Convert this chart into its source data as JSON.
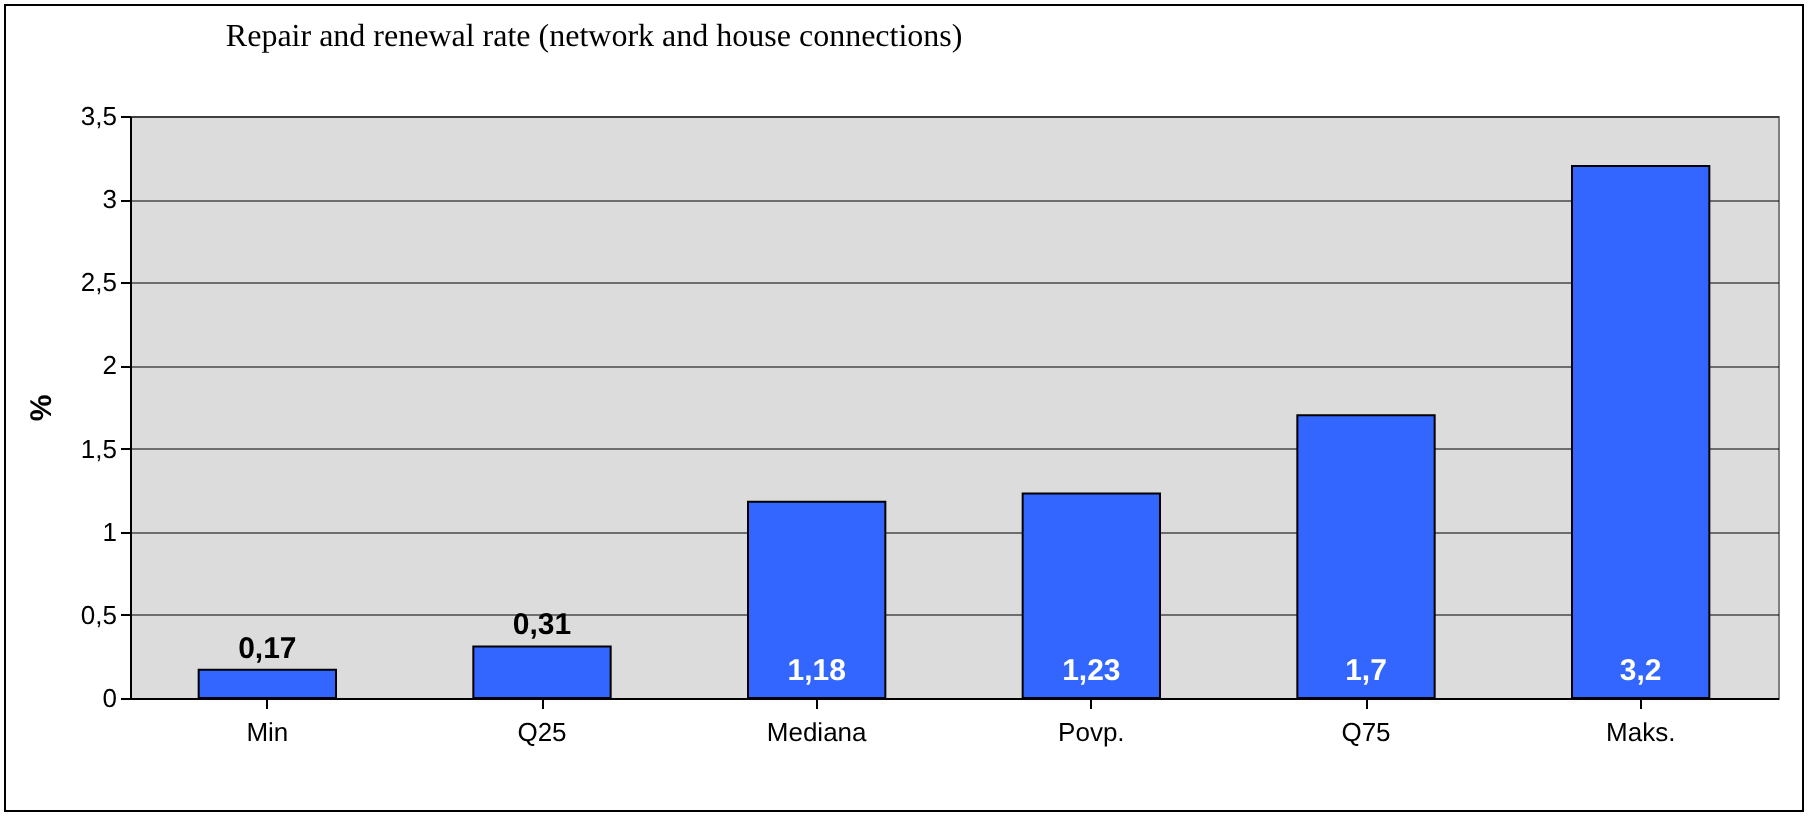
{
  "chart_data": {
    "type": "bar",
    "title": "Repair and renewal rate (network and house connections)",
    "ylabel": "%",
    "categories": [
      "Min",
      "Q25",
      "Mediana",
      "Povp.",
      "Q75",
      "Maks."
    ],
    "values": [
      0.17,
      0.31,
      1.18,
      1.23,
      1.7,
      3.2
    ],
    "value_labels": [
      "0,17",
      "0,31",
      "1,18",
      "1,23",
      "1,7",
      "3,2"
    ],
    "color": "#3366ff",
    "ylim": [
      0,
      3.5
    ],
    "yticks": [
      0,
      {
        "value": 0.5,
        "label": "0,5"
      },
      1,
      {
        "value": 1.5,
        "label": "1,5"
      },
      2,
      {
        "value": 2.5,
        "label": "2,5"
      },
      3,
      {
        "value": 3.5,
        "label": "3,5"
      }
    ],
    "grid": "y"
  }
}
